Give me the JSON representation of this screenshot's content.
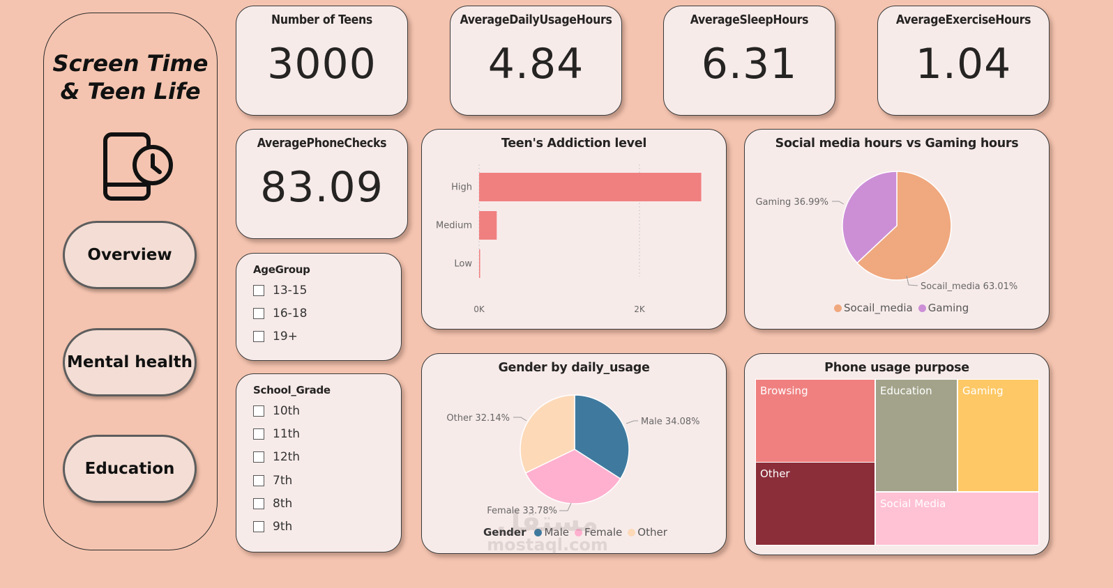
{
  "sidebar": {
    "title_line1": "Screen Time",
    "title_line2": "& Teen Life",
    "icon": "phone-clock-icon",
    "nav": [
      {
        "label": "Overview"
      },
      {
        "label": "Mental health"
      },
      {
        "label": "Education"
      }
    ]
  },
  "kpis": [
    {
      "title": "Number of Teens",
      "value": "3000"
    },
    {
      "title": "AverageDailyUsageHours",
      "value": "4.84"
    },
    {
      "title": "AverageSleepHours",
      "value": "6.31"
    },
    {
      "title": "AverageExerciseHours",
      "value": "1.04"
    },
    {
      "title": "AveragePhoneChecks",
      "value": "83.09"
    }
  ],
  "slicers": {
    "age_group": {
      "title": "AgeGroup",
      "options": [
        "13-15",
        "16-18",
        "19+"
      ]
    },
    "school_grade": {
      "title": "School_Grade",
      "options": [
        "10th",
        "11th",
        "12th",
        "7th",
        "8th",
        "9th"
      ]
    }
  },
  "chart_data": [
    {
      "type": "bar",
      "orientation": "horizontal",
      "title": "Teen's Addiction level",
      "categories": [
        "High",
        "Medium",
        "Low"
      ],
      "values": [
        2770,
        220,
        10
      ],
      "xlim": [
        0,
        2800
      ],
      "tick_labels": [
        "0K",
        "2K"
      ],
      "tick_values": [
        0,
        2000
      ],
      "color": "#f08080",
      "grid": true
    },
    {
      "type": "pie",
      "title": "Social media hours vs Gaming hours",
      "labels": [
        "Socail_media",
        "Gaming"
      ],
      "values": [
        63.01,
        36.99
      ],
      "data_labels": [
        "Socail_media 63.01%",
        "Gaming 36.99%"
      ],
      "colors": [
        "#f0a87e",
        "#cc8fd6"
      ],
      "legend": "bottom"
    },
    {
      "type": "pie",
      "title": "Gender by daily_usage",
      "labels": [
        "Male",
        "Female",
        "Other"
      ],
      "values": [
        34.08,
        33.78,
        32.14
      ],
      "data_labels": [
        "Male 34.08%",
        "Female 33.78%",
        "Other 32.14%"
      ],
      "colors": [
        "#3f7a9e",
        "#ffb0cf",
        "#fdd9b8"
      ],
      "legend_title": "Gender",
      "legend": "bottom"
    },
    {
      "type": "treemap",
      "title": "Phone usage purpose",
      "labels": [
        "Browsing",
        "Other",
        "Education",
        "Gaming",
        "Social Media"
      ],
      "colors": [
        "#f08080",
        "#8b2e3a",
        "#a3a38b",
        "#fdc865",
        "#ffc1d4"
      ]
    }
  ],
  "watermark": {
    "line1": "مستقل",
    "line2": "mostaql.com"
  }
}
